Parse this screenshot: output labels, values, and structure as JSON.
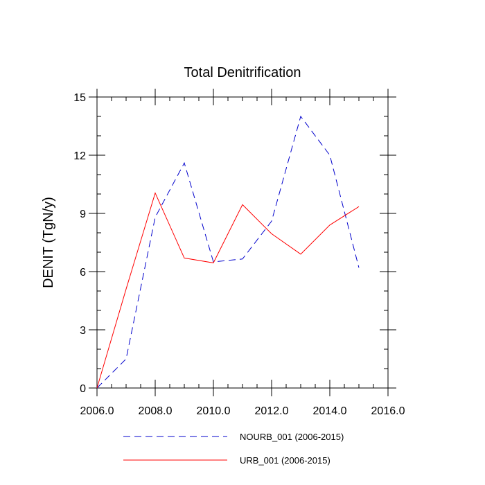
{
  "chart_data": {
    "type": "line",
    "title": "Total Denitrification",
    "xlabel": "",
    "ylabel": "DENIT  (TgN/y)",
    "xlim": [
      2006,
      2016
    ],
    "ylim": [
      0,
      15
    ],
    "xticks": [
      2006,
      2008,
      2010,
      2012,
      2014,
      2016
    ],
    "xtick_labels": [
      "2006.0",
      "2008.0",
      "2010.0",
      "2012.0",
      "2014.0",
      "2016.0"
    ],
    "yticks": [
      0,
      3,
      6,
      9,
      12,
      15
    ],
    "ytick_labels": [
      "0",
      "3",
      "6",
      "9",
      "12",
      "15"
    ],
    "legend_position": "bottom",
    "x": [
      2006,
      2007,
      2008,
      2009,
      2010,
      2011,
      2012,
      2013,
      2014,
      2015
    ],
    "series": [
      {
        "name": "NOURB_001 (2006-2015)",
        "color": "#0000cc",
        "style": "dashed",
        "values": [
          0.0,
          1.5,
          8.8,
          11.6,
          6.5,
          6.65,
          8.6,
          14.0,
          12.0,
          6.2
        ]
      },
      {
        "name": "URB_001 (2006-2015)",
        "color": "#ff0000",
        "style": "solid",
        "values": [
          0.0,
          5.1,
          10.05,
          6.7,
          6.45,
          9.45,
          7.95,
          6.9,
          8.4,
          9.35
        ]
      }
    ]
  }
}
